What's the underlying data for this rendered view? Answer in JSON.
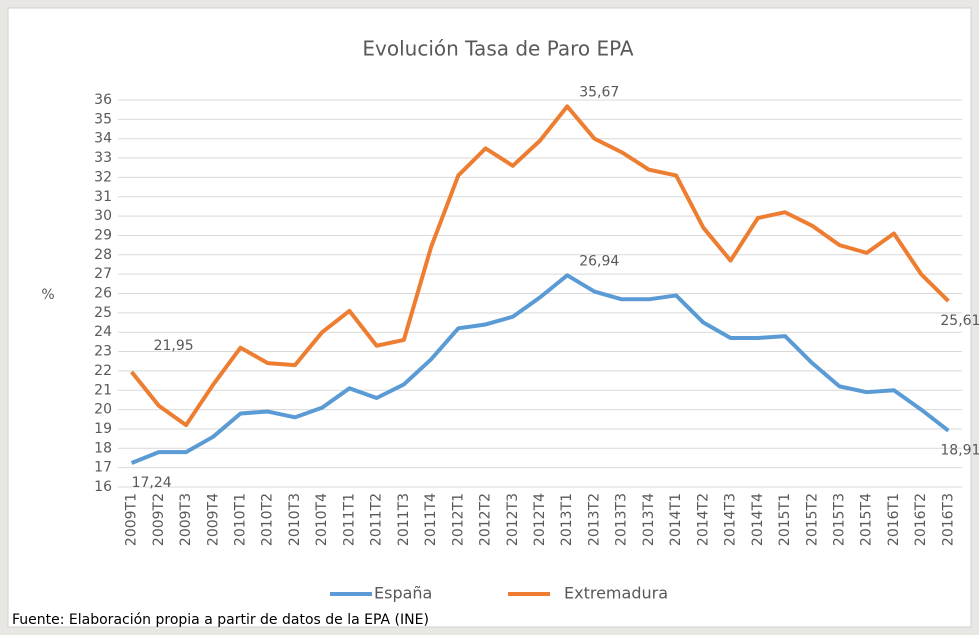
{
  "chart_data": {
    "type": "line",
    "title": "Evolución Tasa de Paro EPA",
    "y_label": "%",
    "source": "Fuente: Elaboración propia a partir de datos de la EPA (INE)",
    "categories": [
      "2009T1",
      "2009T2",
      "2009T3",
      "2009T4",
      "2010T1",
      "2010T2",
      "2010T3",
      "2010T4",
      "2011T1",
      "2011T2",
      "2011T3",
      "2011T4",
      "2012T1",
      "2012T2",
      "2012T3",
      "2012T4",
      "2013T1",
      "2013T2",
      "2013T3",
      "2013T4",
      "2014T1",
      "2014T2",
      "2014T3",
      "2014T4",
      "2015T1",
      "2015T2",
      "2015T3",
      "2015T4",
      "2016T1",
      "2016T2",
      "2016T3"
    ],
    "series": [
      {
        "name": "España",
        "color": "#5b9bd5",
        "values": [
          17.24,
          17.8,
          17.8,
          18.6,
          19.8,
          19.9,
          19.6,
          20.1,
          21.1,
          20.6,
          21.3,
          22.6,
          24.2,
          24.4,
          24.8,
          25.8,
          26.94,
          26.1,
          25.7,
          25.7,
          25.9,
          24.5,
          23.7,
          23.7,
          23.8,
          22.4,
          21.2,
          20.9,
          21.0,
          20.0,
          18.91
        ],
        "value_labels": [
          "17,24",
          null,
          null,
          null,
          null,
          null,
          null,
          null,
          null,
          null,
          null,
          null,
          null,
          null,
          null,
          null,
          "26,94",
          null,
          null,
          null,
          null,
          null,
          null,
          null,
          null,
          null,
          null,
          null,
          null,
          null,
          "18,91"
        ]
      },
      {
        "name": "Extremadura",
        "color": "#ed7d31",
        "values": [
          21.95,
          20.2,
          19.2,
          21.3,
          23.2,
          22.4,
          22.3,
          24.0,
          25.1,
          23.3,
          23.6,
          28.4,
          32.1,
          33.5,
          32.6,
          33.9,
          35.67,
          34.0,
          33.3,
          32.4,
          32.1,
          29.4,
          27.7,
          29.9,
          30.2,
          29.5,
          28.5,
          28.1,
          29.1,
          27.0,
          25.61
        ],
        "value_labels": [
          "21,95",
          null,
          null,
          null,
          null,
          null,
          null,
          null,
          null,
          null,
          null,
          null,
          null,
          null,
          null,
          null,
          "35,67",
          null,
          null,
          null,
          null,
          null,
          null,
          null,
          null,
          null,
          null,
          null,
          null,
          null,
          "25,61"
        ]
      }
    ],
    "ylim": [
      16,
      36
    ],
    "yticks": [
      16,
      17,
      18,
      19,
      20,
      21,
      22,
      23,
      24,
      25,
      26,
      27,
      28,
      29,
      30,
      31,
      32,
      33,
      34,
      35,
      36
    ],
    "grid": true,
    "legend": "bottom"
  }
}
